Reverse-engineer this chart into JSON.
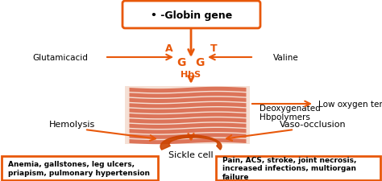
{
  "bg_color": "#ffffff",
  "orange": "#e8580a",
  "stripe_color": "#d45030",
  "stripe_bg": "#f5e0d5",
  "title_text": "• -Globin gene",
  "left_box_text": "Anemia, gallstones, leg ulcers,\npriapism, pulmonary hypertension",
  "right_box_text": "Pain, ACS, stroke, joint necrosis,\nincreased infections, multiorgan\nfailure",
  "label_glutamicacid": "Glutamicacid",
  "label_valine": "Valine",
  "label_A": "A",
  "label_G1": "G",
  "label_G2": "G",
  "label_T": "T",
  "label_HbS": "HbS",
  "label_low_o2": "Low oxygen tension",
  "label_deoxygenated": "Deoxygenated\nHbpolymers",
  "label_hemolysis": "Hemolysis",
  "label_sickle": "Sickle cell",
  "label_vaso": "Vaso-occlusion",
  "figsize": [
    4.74,
    2.26
  ],
  "dpi": 100
}
